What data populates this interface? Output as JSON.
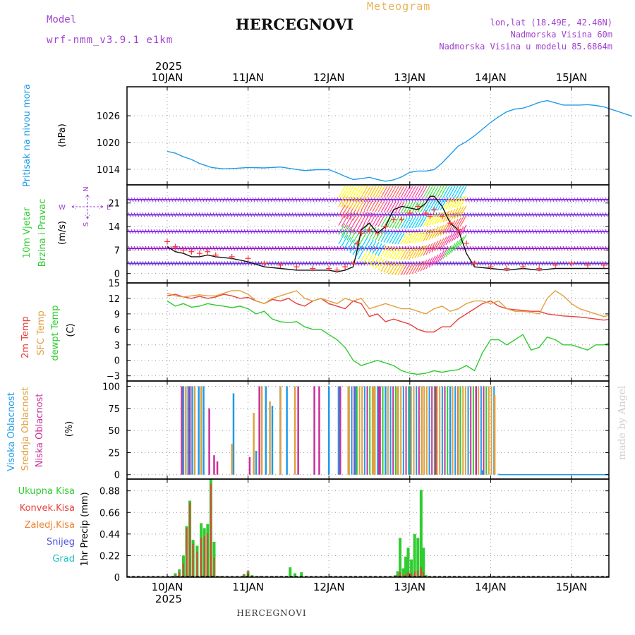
{
  "header": {
    "title": "HERCEGNOVI",
    "model_label": "Model",
    "model_value": "wrf-nmm_v3.9.1 e1km",
    "meteogram_label": "Meteogram",
    "location_line1": "lon,lat (18.49E, 42.46N)",
    "location_line2": "Nadmorska Visina 60m",
    "location_line3": "Nadmorska Visina u modelu 85.6864m"
  },
  "footer": {
    "station": "HERCEGNOVI",
    "credit": "made by Angel"
  },
  "colors": {
    "pressure": "#1e9be8",
    "wind_label": "#2ecc2e",
    "wind_speed": "#111111",
    "gust": "#ff3333",
    "temp_2m": "#e8413c",
    "temp_sfc": "#e0a040",
    "dewpoint": "#30cc30",
    "cloud_high": "#1e9be8",
    "cloud_mid": "#e0a040",
    "cloud_low": "#c8309a",
    "precip_total": "#30cc30",
    "precip_conv": "#e8413c",
    "precip_frozen": "#f08030",
    "snow": "#5050e0",
    "hail": "#20c0c0"
  },
  "chart_data": [
    {
      "panel": "pressure",
      "type": "line",
      "top_date_labels": [
        "10JAN",
        "11JAN",
        "12JAN",
        "13JAN",
        "14JAN",
        "15JAN"
      ],
      "year_label": "2025",
      "ylabel": "Pritisak na nivou mora",
      "unit": "(hPa)",
      "yticks": [
        1014,
        1020,
        1026
      ],
      "ylim": [
        1010.5,
        1032.5
      ],
      "x_days": [
        0,
        0.1,
        0.2,
        0.3,
        0.4,
        0.55,
        0.7,
        0.85,
        1.0,
        1.2,
        1.4,
        1.55,
        1.7,
        1.85,
        2.0,
        2.1,
        2.2,
        2.3,
        2.4,
        2.5,
        2.6,
        2.7,
        2.8,
        2.9,
        3.0,
        3.1,
        3.2,
        3.3,
        3.4,
        3.5,
        3.6,
        3.7,
        3.8,
        3.9,
        4.0,
        4.1,
        4.2,
        4.3,
        4.4,
        4.5,
        4.6,
        4.7,
        4.8,
        4.9,
        5.0,
        5.1,
        5.2,
        5.3,
        5.4,
        5.5,
        5.6,
        5.75
      ],
      "values": [
        1018,
        1017.6,
        1016.8,
        1016.2,
        1015.3,
        1014.4,
        1014.1,
        1014.2,
        1014.4,
        1014.3,
        1014.5,
        1014.1,
        1013.7,
        1013.9,
        1013.9,
        1013.2,
        1012.4,
        1011.7,
        1011.9,
        1012.2,
        1011.7,
        1011.3,
        1011.6,
        1012.3,
        1013.3,
        1013.6,
        1013.6,
        1013.9,
        1015.4,
        1017.3,
        1019.2,
        1020.2,
        1021.5,
        1023,
        1024.5,
        1025.8,
        1026.9,
        1027.5,
        1027.7,
        1028.3,
        1029.0,
        1029.4,
        1028.9,
        1028.4,
        1028.4,
        1028.4,
        1028.5,
        1028.3,
        1028.0,
        1027.4,
        1026.8,
        1025.9
      ]
    },
    {
      "panel": "wind",
      "type": "line",
      "ylabel_1": "10m Vjetar",
      "ylabel_2": "Brzina i Pravac",
      "unit": "(m/s)",
      "compass_n": "N",
      "compass_s": "S",
      "compass_e": "E",
      "compass_w": "W",
      "yticks": [
        0,
        7,
        14,
        21
      ],
      "ylim": [
        -2.8,
        26.4
      ],
      "speed_series": {
        "name": "wind speed",
        "x_days": [
          0,
          0.1,
          0.2,
          0.3,
          0.4,
          0.5,
          0.6,
          0.8,
          1.0,
          1.2,
          1.4,
          1.6,
          1.8,
          2.0,
          2.1,
          2.2,
          2.3,
          2.35,
          2.4,
          2.5,
          2.6,
          2.7,
          2.8,
          2.9,
          3.0,
          3.1,
          3.2,
          3.25,
          3.3,
          3.4,
          3.5,
          3.6,
          3.7,
          3.8,
          4.0,
          4.2,
          4.4,
          4.6,
          4.8,
          5.0,
          5.2,
          5.4,
          5.6,
          5.75
        ],
        "values": [
          8.0,
          6.5,
          6.0,
          5.0,
          5.0,
          5.5,
          5.0,
          4.5,
          3.5,
          2.0,
          1.5,
          1.0,
          1.0,
          1.0,
          0.5,
          1.0,
          2.0,
          7.0,
          13.0,
          15.0,
          12.0,
          14.0,
          19.0,
          20.0,
          19.5,
          19.0,
          21.0,
          23.0,
          23.0,
          20.0,
          15.0,
          13.0,
          6.0,
          2.0,
          1.5,
          1.0,
          1.5,
          1.0,
          1.5,
          1.5,
          1.5,
          1.5,
          1.5,
          1.5
        ]
      },
      "gust_series": {
        "name": "gust",
        "x_days": [
          0,
          0.1,
          0.2,
          0.3,
          0.4,
          0.5,
          0.6,
          0.8,
          1.0,
          1.2,
          1.4,
          1.6,
          1.8,
          2.0,
          2.1,
          2.2,
          2.3,
          2.35,
          2.4,
          2.5,
          2.6,
          2.7,
          2.8,
          2.9,
          3.0,
          3.1,
          3.2,
          3.25,
          3.3,
          3.4,
          3.5,
          3.6,
          3.7,
          3.8,
          4.0,
          4.2,
          4.4,
          4.6,
          4.8,
          5.0,
          5.2,
          5.4,
          5.6,
          5.75
        ],
        "values": [
          9.5,
          8.0,
          7.0,
          6.5,
          6.0,
          6.5,
          5.5,
          5.0,
          4.5,
          3.0,
          2.5,
          2.0,
          1.5,
          1.5,
          1.0,
          2.0,
          3.0,
          9.0,
          12.0,
          13.0,
          12.0,
          14.0,
          16.0,
          16.0,
          18.0,
          20.0,
          18.0,
          17.0,
          19.0,
          17.0,
          15.0,
          13.0,
          9.0,
          3.0,
          2.0,
          1.5,
          2.0,
          1.5,
          2.5,
          3.0,
          2.5,
          2.5,
          2.0,
          2.0
        ]
      }
    },
    {
      "panel": "temperature",
      "type": "line",
      "ylabel_1": "2m Temp",
      "ylabel_2": "SFC Temp",
      "ylabel_3": "dewpt Temp",
      "unit": "(C)",
      "yticks": [
        -3,
        0,
        3,
        6,
        9,
        12,
        15
      ],
      "ylim": [
        -4,
        15
      ],
      "x_days": [
        0,
        0.1,
        0.2,
        0.3,
        0.4,
        0.5,
        0.6,
        0.7,
        0.8,
        0.9,
        1.0,
        1.1,
        1.2,
        1.3,
        1.4,
        1.5,
        1.6,
        1.7,
        1.8,
        1.9,
        2.0,
        2.1,
        2.2,
        2.3,
        2.4,
        2.5,
        2.6,
        2.7,
        2.8,
        2.9,
        3.0,
        3.1,
        3.2,
        3.3,
        3.4,
        3.5,
        3.6,
        3.7,
        3.8,
        3.9,
        4.0,
        4.1,
        4.2,
        4.3,
        4.4,
        4.5,
        4.6,
        4.7,
        4.8,
        4.9,
        5.0,
        5.1,
        5.2,
        5.3,
        5.4,
        5.5,
        5.6,
        5.75
      ],
      "series": [
        {
          "name": "2m Temp",
          "values": [
            12.5,
            12.8,
            12.3,
            12.0,
            12.4,
            12.0,
            12.3,
            12.8,
            12.5,
            12.0,
            12.2,
            11.5,
            11.0,
            11.8,
            11.5,
            12.0,
            11.0,
            10.5,
            11.5,
            12.0,
            11.0,
            10.5,
            10.0,
            11.5,
            11.0,
            8.5,
            9.0,
            7.5,
            8.0,
            7.5,
            7.0,
            6.0,
            5.5,
            5.5,
            6.5,
            6.5,
            8.0,
            9.0,
            10.0,
            11.0,
            11.5,
            10.5,
            10.0,
            9.8,
            9.7,
            9.5,
            9.5,
            9.0,
            8.8,
            8.6,
            8.5,
            8.4,
            8.2,
            8.0,
            7.8,
            8.0,
            9.5,
            10.0
          ]
        },
        {
          "name": "SFC Temp",
          "values": [
            13.0,
            12.5,
            12.3,
            12.5,
            12.7,
            12.5,
            12.5,
            13.0,
            13.5,
            13.5,
            12.8,
            11.5,
            11.0,
            12.0,
            12.5,
            13.0,
            13.5,
            12.0,
            11.5,
            12.0,
            11.5,
            11.0,
            12.0,
            11.5,
            12.0,
            10.0,
            10.5,
            11.0,
            10.5,
            10.0,
            10.0,
            9.5,
            9.0,
            10.0,
            10.5,
            9.5,
            10.0,
            11.0,
            11.5,
            11.5,
            11.0,
            11.5,
            10.0,
            9.5,
            9.5,
            9.3,
            9.0,
            12.0,
            13.5,
            12.5,
            11.0,
            10.0,
            9.5,
            9.0,
            8.5,
            8.8,
            13.0,
            13.5
          ]
        },
        {
          "name": "dewpt Temp",
          "values": [
            11.5,
            10.5,
            11.0,
            10.3,
            10.5,
            11.0,
            10.7,
            10.5,
            10.2,
            10.5,
            10.0,
            9.0,
            9.5,
            8.0,
            7.5,
            7.3,
            7.5,
            6.5,
            6.0,
            6.0,
            5.0,
            4.0,
            2.5,
            0.0,
            -1.0,
            -0.5,
            0.0,
            -0.5,
            -1.0,
            -2.0,
            -2.5,
            -2.7,
            -2.5,
            -2.0,
            -2.3,
            -2.0,
            -1.8,
            -1.0,
            -2.0,
            1.5,
            4.0,
            4.0,
            3.0,
            4.0,
            5.0,
            2.0,
            2.5,
            4.5,
            4.0,
            3.0,
            3.0,
            2.5,
            2.0,
            3.0,
            3.0,
            3.5,
            4.5,
            5.2
          ]
        }
      ]
    },
    {
      "panel": "cloud",
      "type": "bar",
      "ylabel_1": "Visoka Oblacnost",
      "ylabel_2": "Srednja Oblacnost",
      "ylabel_3": "Niska Oblacnost",
      "unit": "(%)",
      "yticks": [
        0,
        25,
        50,
        75,
        100
      ],
      "ylim": [
        -5,
        106
      ],
      "series": [
        {
          "name": "Visoka Oblacnost",
          "x_days": [
            0.2,
            0.26,
            0.31,
            0.39,
            0.45,
            0.82,
            1.1,
            1.22,
            1.3,
            1.4,
            1.48,
            2.0,
            2.12,
            2.33,
            2.7,
            3.0,
            3.5,
            3.9,
            4.1
          ],
          "values": [
            100,
            100,
            100,
            100,
            100,
            92,
            27,
            100,
            78,
            100,
            100,
            100,
            100,
            100,
            100,
            100,
            100,
            5,
            1
          ]
        },
        {
          "name": "Srednja Oblacnost",
          "x_days": [
            0.23,
            0.34,
            0.42,
            0.8,
            1.07,
            1.17,
            1.27,
            1.4,
            1.58,
            2.24,
            2.55,
            2.85,
            3.15,
            3.6,
            4.05
          ],
          "values": [
            100,
            100,
            100,
            35,
            70,
            100,
            83,
            100,
            100,
            100,
            100,
            100,
            100,
            100,
            90
          ]
        },
        {
          "name": "Niska Oblacnost",
          "x_days": [
            0.18,
            0.28,
            0.52,
            0.58,
            0.62,
            1.02,
            1.14,
            1.62,
            1.82,
            1.88,
            2.14,
            2.62,
            3.32,
            3.82
          ],
          "values": [
            100,
            100,
            75,
            22,
            15,
            20,
            100,
            100,
            100,
            100,
            100,
            100,
            100,
            100
          ]
        }
      ],
      "dense_block_days": [
        2.25,
        4.05
      ]
    },
    {
      "panel": "precip",
      "type": "bar",
      "legend": [
        "Ukupna Kisa",
        "Konvek.Kisa",
        "Zaledj.Kisa",
        "Snijeg",
        "Grad"
      ],
      "ylabel": "1hr Precip (mm)",
      "yticks": [
        0,
        0.22,
        0.44,
        0.66,
        0.88
      ],
      "ylim": [
        0,
        1.0
      ],
      "x_days": [
        0.05,
        0.1,
        0.15,
        0.2,
        0.24,
        0.28,
        0.32,
        0.37,
        0.42,
        0.46,
        0.5,
        0.54,
        0.58,
        0.62,
        0.66,
        0.95,
        1.0,
        1.05,
        1.15,
        1.3,
        1.4,
        1.52,
        1.58,
        1.66,
        1.72,
        2.82,
        2.85,
        2.88,
        2.92,
        2.95,
        2.98,
        3.02,
        3.06,
        3.1,
        3.14,
        3.17,
        3.2
      ],
      "total_values": [
        0.01,
        0.04,
        0.08,
        0.22,
        0.52,
        0.78,
        0.38,
        0.32,
        0.55,
        0.5,
        0.54,
        1.0,
        0.36,
        0.01,
        0.01,
        0.03,
        0.06,
        0.02,
        0.01,
        0.01,
        0.01,
        0.1,
        0.04,
        0.05,
        0.01,
        0.02,
        0.06,
        0.4,
        0.09,
        0.21,
        0.3,
        0.18,
        0.44,
        0.4,
        0.89,
        0.3,
        0.02
      ],
      "conv_values": [
        0.01,
        0.02,
        0.05,
        0.14,
        0.5,
        0.76,
        0.34,
        0.26,
        0.4,
        0.42,
        0.45,
        0.95,
        0.2,
        0.01,
        0.01,
        0.03,
        0.07,
        0.01,
        0.01,
        0.0,
        0.0,
        0.0,
        0.0,
        0.0,
        0.0,
        0.0,
        0.02,
        0.05,
        0.02,
        0.03,
        0.05,
        0.04,
        0.06,
        0.07,
        0.1,
        0.05,
        0.0
      ],
      "bottom_date_labels": [
        "10JAN",
        "11JAN",
        "12JAN",
        "13JAN",
        "14JAN",
        "15JAN"
      ],
      "bottom_year_label": "2025"
    }
  ]
}
